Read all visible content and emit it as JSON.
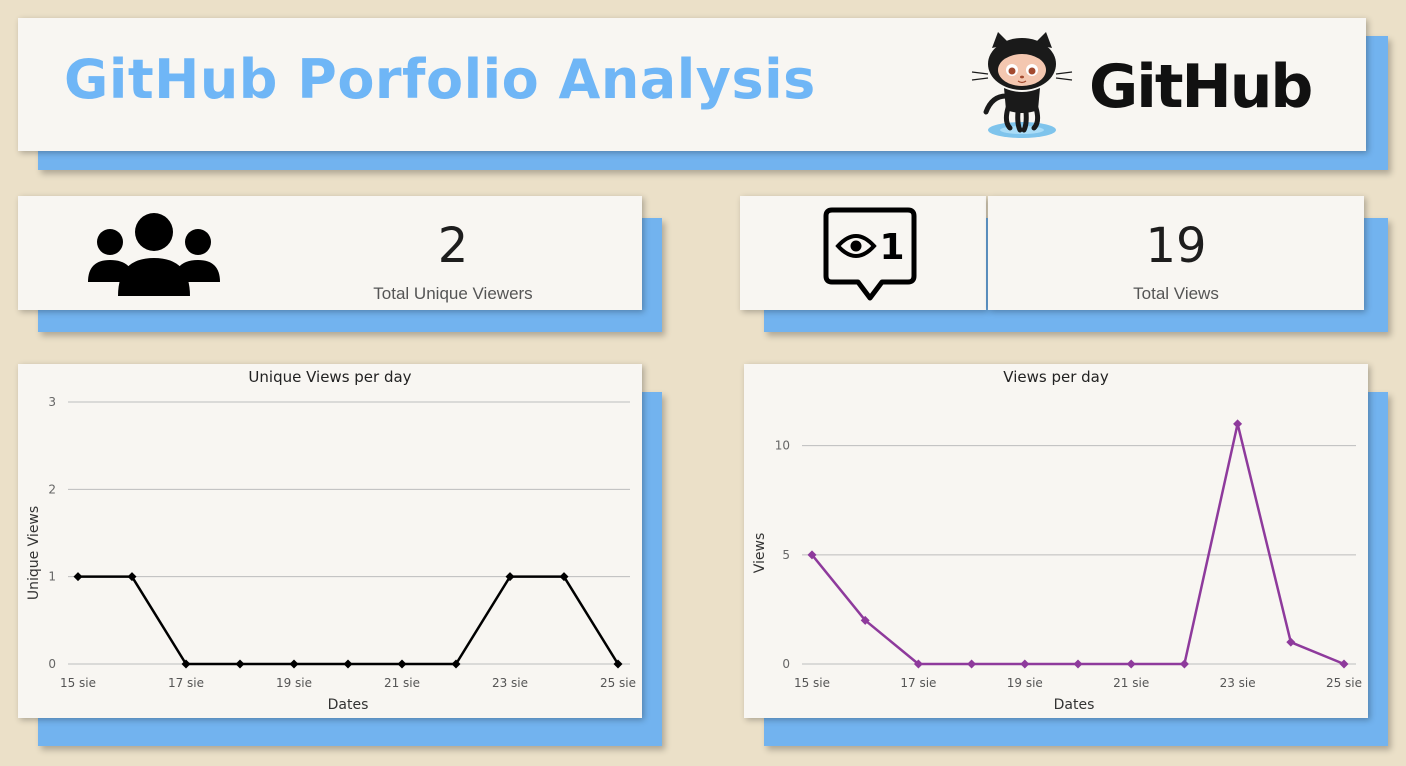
{
  "header": {
    "title": "GitHub Porfolio Analysis",
    "logo_text": "GitHub"
  },
  "kpis": [
    {
      "value": "2",
      "label": "Total Unique Viewers",
      "icon": "people-group-icon"
    },
    {
      "value": "19",
      "label": "Total Views",
      "icon": "eye-notification-icon",
      "icon_text": "1"
    }
  ],
  "colors": {
    "background": "#ebe0c8",
    "accent": "#6fb6f6",
    "unique_line": "#000000",
    "views_line": "#8e3a9c"
  },
  "chart_data": [
    {
      "type": "line",
      "title": "Unique Views per day",
      "xlabel": "Dates",
      "ylabel": "Unique Views",
      "x": [
        "15 sie",
        "16 sie",
        "17 sie",
        "18 sie",
        "19 sie",
        "20 sie",
        "21 sie",
        "22 sie",
        "23 sie",
        "24 sie",
        "25 sie"
      ],
      "x_tick_labels": [
        "15 sie",
        "17 sie",
        "19 sie",
        "21 sie",
        "23 sie",
        "25 sie"
      ],
      "values": [
        1,
        1,
        0,
        0,
        0,
        0,
        0,
        0,
        1,
        1,
        0
      ],
      "ylim": [
        0,
        3
      ],
      "yticks": [
        0,
        1,
        2,
        3
      ],
      "grid": true
    },
    {
      "type": "line",
      "title": "Views per day",
      "xlabel": "Dates",
      "ylabel": "Views",
      "x": [
        "15 sie",
        "16 sie",
        "17 sie",
        "18 sie",
        "19 sie",
        "20 sie",
        "21 sie",
        "22 sie",
        "23 sie",
        "24 sie",
        "25 sie"
      ],
      "x_tick_labels": [
        "15 sie",
        "17 sie",
        "19 sie",
        "21 sie",
        "23 sie",
        "25 sie"
      ],
      "values": [
        5,
        2,
        0,
        0,
        0,
        0,
        0,
        0,
        11,
        1,
        0
      ],
      "ylim": [
        0,
        12
      ],
      "yticks": [
        0,
        5,
        10
      ],
      "grid": true
    }
  ]
}
